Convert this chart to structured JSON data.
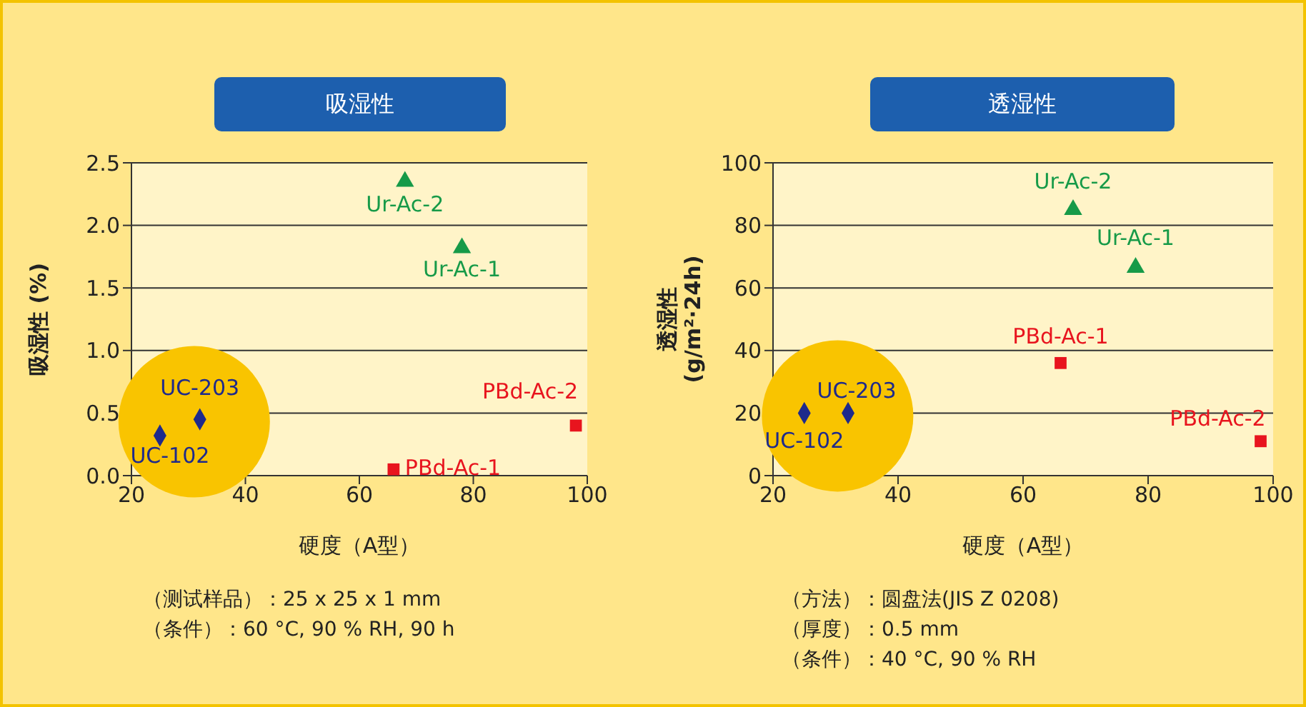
{
  "chart_data": [
    {
      "type": "scatter",
      "title": "吸湿性",
      "xlabel": "硬度（A型）",
      "ylabel": "吸湿性 (%)",
      "xlim": [
        20,
        100
      ],
      "xticks": [
        20,
        40,
        60,
        80,
        100
      ],
      "ylim": [
        0,
        2.5
      ],
      "yticks": [
        {
          "value": 0,
          "label": "0.0"
        },
        {
          "value": 0.5,
          "label": "0.5"
        },
        {
          "value": 1,
          "label": "1.0"
        },
        {
          "value": 1.5,
          "label": "1.5"
        },
        {
          "value": 2,
          "label": "2.0"
        },
        {
          "value": 2.5,
          "label": "2.5"
        }
      ],
      "grid": "y",
      "legend": false,
      "series": [
        {
          "name": "UC-102",
          "color": "#1e2a8c",
          "marker": "diamond",
          "x": [
            25
          ],
          "values": [
            0.32
          ]
        },
        {
          "name": "UC-203",
          "color": "#1e2a8c",
          "marker": "diamond",
          "x": [
            32
          ],
          "values": [
            0.45
          ]
        },
        {
          "name": "Ur-Ac-2",
          "color": "#169a48",
          "marker": "triangle",
          "x": [
            68
          ],
          "values": [
            2.35
          ]
        },
        {
          "name": "Ur-Ac-1",
          "color": "#169a48",
          "marker": "triangle",
          "x": [
            78
          ],
          "values": [
            1.82
          ]
        },
        {
          "name": "PBd-Ac-1",
          "color": "#e8141e",
          "marker": "square",
          "x": [
            66
          ],
          "values": [
            0.05
          ]
        },
        {
          "name": "PBd-Ac-2",
          "color": "#e8141e",
          "marker": "square",
          "x": [
            98
          ],
          "values": [
            0.4
          ]
        }
      ],
      "annotations": [
        "（测试样品）：25 x 25 x 1 mm",
        "（条件）：60 °C, 90 % RH, 90 h"
      ]
    },
    {
      "type": "scatter",
      "title": "透湿性",
      "xlabel": "硬度（A型）",
      "ylabel": "透湿性\n(g/m²·24h)",
      "xlim": [
        20,
        100
      ],
      "xticks": [
        20,
        40,
        60,
        80,
        100
      ],
      "ylim": [
        0,
        100
      ],
      "yticks": [
        0,
        20,
        40,
        60,
        80,
        100
      ],
      "grid": "y",
      "legend": false,
      "series": [
        {
          "name": "UC-102",
          "color": "#1e2a8c",
          "marker": "diamond",
          "x": [
            25
          ],
          "values": [
            20
          ]
        },
        {
          "name": "UC-203",
          "color": "#1e2a8c",
          "marker": "diamond",
          "x": [
            32
          ],
          "values": [
            20
          ]
        },
        {
          "name": "Ur-Ac-2",
          "color": "#169a48",
          "marker": "triangle",
          "x": [
            68
          ],
          "values": [
            85
          ]
        },
        {
          "name": "Ur-Ac-1",
          "color": "#169a48",
          "marker": "triangle",
          "x": [
            78
          ],
          "values": [
            66.5
          ]
        },
        {
          "name": "PBd-Ac-1",
          "color": "#e8141e",
          "marker": "square",
          "x": [
            66
          ],
          "values": [
            36
          ]
        },
        {
          "name": "PBd-Ac-2",
          "color": "#e8141e",
          "marker": "square",
          "x": [
            98
          ],
          "values": [
            11
          ]
        }
      ],
      "annotations": [
        "（方法）：圆盘法(JIS Z 0208)",
        "（厚度）：0.5 mm",
        "（条件）：40 °C, 90 % RH"
      ]
    }
  ]
}
